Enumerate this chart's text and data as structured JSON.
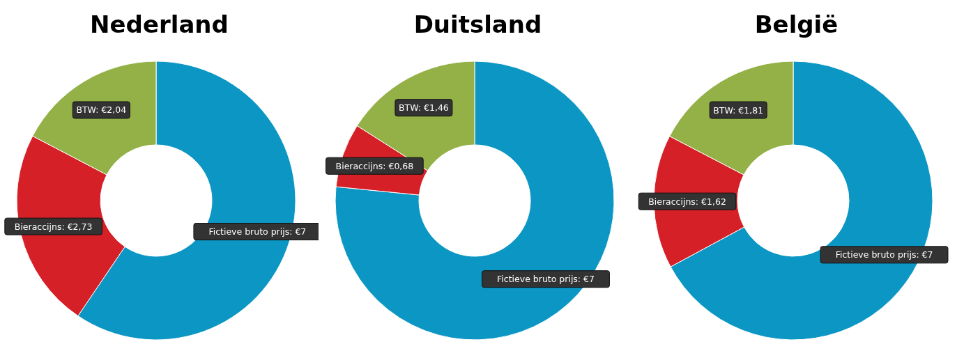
{
  "chart_data": [
    {
      "type": "donut",
      "title": "Nederland",
      "categories": [
        "Fictieve bruto prijs",
        "Bieraccijns",
        "BTW"
      ],
      "values": [
        7,
        2.73,
        2.04
      ],
      "colors": [
        "#0c96c4",
        "#d52027",
        "#93b147"
      ],
      "value_labels": [
        "€7",
        "€2,73",
        "€2,04"
      ]
    },
    {
      "type": "donut",
      "title": "Duitsland",
      "categories": [
        "Fictieve bruto prijs",
        "Bieraccijns",
        "BTW"
      ],
      "values": [
        7,
        0.68,
        1.46
      ],
      "colors": [
        "#0c96c4",
        "#d52027",
        "#93b147"
      ],
      "value_labels": [
        "€7",
        "€0,68",
        "€1,46"
      ]
    },
    {
      "type": "donut",
      "title": "België",
      "categories": [
        "Fictieve bruto prijs",
        "Bieraccijns",
        "BTW"
      ],
      "values": [
        7,
        1.62,
        1.81
      ],
      "colors": [
        "#0c96c4",
        "#d52027",
        "#93b147"
      ],
      "value_labels": [
        "€7",
        "€1,62",
        "€1,81"
      ]
    }
  ]
}
